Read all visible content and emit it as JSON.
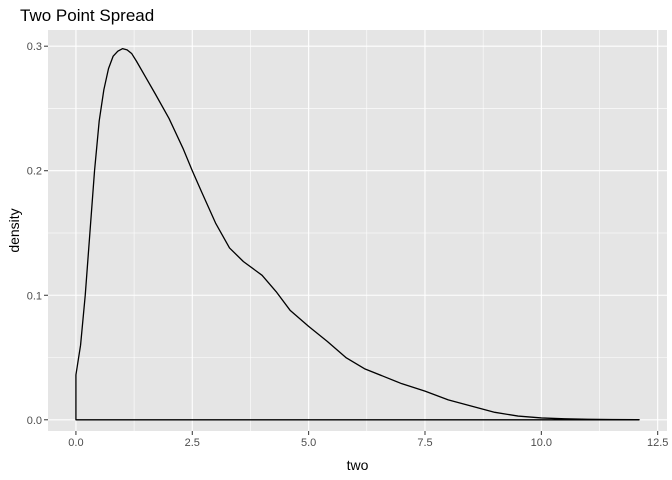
{
  "chart_data": {
    "type": "area",
    "title": "Two Point Spread",
    "xlabel": "two",
    "ylabel": "density",
    "xlim": [
      -0.6,
      12.7
    ],
    "ylim": [
      -0.009,
      0.313
    ],
    "x_ticks": [
      0.0,
      2.5,
      5.0,
      7.5,
      10.0,
      12.5
    ],
    "x_tick_labels": [
      "0.0",
      "2.5",
      "5.0",
      "7.5",
      "10.0",
      "12.5"
    ],
    "y_ticks": [
      0.0,
      0.1,
      0.2,
      0.3
    ],
    "y_tick_labels": [
      "0.0",
      "0.1",
      "0.2",
      "0.3"
    ],
    "grid": true,
    "legend": "none",
    "colors": {
      "panel": "#e5e5e5",
      "grid": "#ffffff",
      "line": "#000000"
    },
    "series": [
      {
        "x": [
          0,
          0.1,
          0.2,
          0.3,
          0.4,
          0.5,
          0.6,
          0.7,
          0.8,
          0.9,
          1.0,
          1.1,
          1.2,
          1.3,
          1.5,
          1.7,
          2.0,
          2.3,
          2.5,
          2.7,
          3.0,
          3.3,
          3.6,
          4.0,
          4.3,
          4.6,
          5.0,
          5.4,
          5.8,
          6.2,
          6.6,
          7.0,
          7.5,
          8.0,
          8.5,
          9.0,
          9.5,
          10.0,
          10.5,
          11.0,
          11.5,
          12.1
        ],
        "y": [
          0.036,
          0.06,
          0.1,
          0.15,
          0.2,
          0.24,
          0.265,
          0.282,
          0.292,
          0.296,
          0.298,
          0.297,
          0.294,
          0.288,
          0.275,
          0.262,
          0.242,
          0.218,
          0.2,
          0.183,
          0.158,
          0.138,
          0.127,
          0.116,
          0.103,
          0.088,
          0.075,
          0.063,
          0.05,
          0.041,
          0.035,
          0.029,
          0.023,
          0.016,
          0.011,
          0.006,
          0.003,
          0.0015,
          0.0008,
          0.0004,
          0.0002,
          0.0001
        ]
      }
    ]
  }
}
